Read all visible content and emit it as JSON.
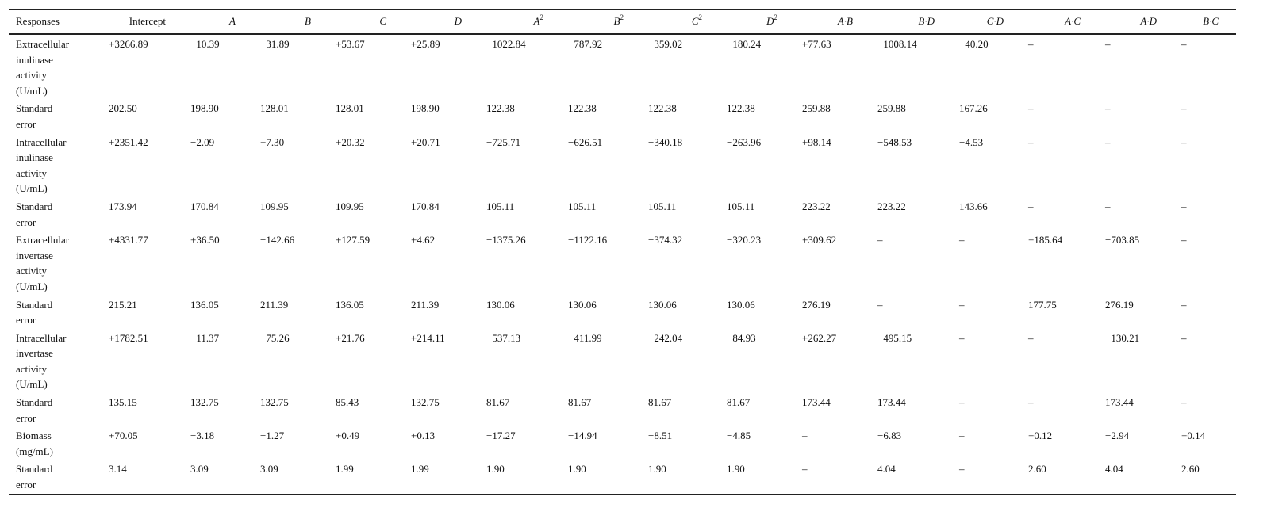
{
  "table": {
    "headers": [
      {
        "base": "Responses",
        "sup": "",
        "italic": false
      },
      {
        "base": "Intercept",
        "sup": "",
        "italic": false
      },
      {
        "base": "A",
        "sup": "",
        "italic": true
      },
      {
        "base": "B",
        "sup": "",
        "italic": true
      },
      {
        "base": "C",
        "sup": "",
        "italic": true
      },
      {
        "base": "D",
        "sup": "",
        "italic": true
      },
      {
        "base": "A",
        "sup": "2",
        "italic": true
      },
      {
        "base": "B",
        "sup": "2",
        "italic": true
      },
      {
        "base": "C",
        "sup": "2",
        "italic": true
      },
      {
        "base": "D",
        "sup": "2",
        "italic": true
      },
      {
        "base": "A·B",
        "sup": "",
        "italic": true
      },
      {
        "base": "B·D",
        "sup": "",
        "italic": true
      },
      {
        "base": "C·D",
        "sup": "",
        "italic": true
      },
      {
        "base": "A·C",
        "sup": "",
        "italic": true
      },
      {
        "base": "A·D",
        "sup": "",
        "italic": true
      },
      {
        "base": "B·C",
        "sup": "",
        "italic": true
      }
    ],
    "rows": [
      [
        "Extracellular inulinase activity (U/mL)",
        "+3266.89",
        "−10.39",
        "−31.89",
        "+53.67",
        "+25.89",
        "−1022.84",
        "−787.92",
        "−359.02",
        "−180.24",
        "+77.63",
        "−1008.14",
        "−40.20",
        "–",
        "–",
        "–"
      ],
      [
        "Standard error",
        "202.50",
        "198.90",
        "128.01",
        "128.01",
        "198.90",
        "122.38",
        "122.38",
        "122.38",
        "122.38",
        "259.88",
        "259.88",
        "167.26",
        "–",
        "–",
        "–"
      ],
      [
        "Intracellular inulinase activity (U/mL)",
        "+2351.42",
        "−2.09",
        "+7.30",
        "+20.32",
        "+20.71",
        "−725.71",
        "−626.51",
        "−340.18",
        "−263.96",
        "+98.14",
        "−548.53",
        "−4.53",
        "–",
        "–",
        "–"
      ],
      [
        "Standard error",
        "173.94",
        "170.84",
        "109.95",
        "109.95",
        "170.84",
        "105.11",
        "105.11",
        "105.11",
        "105.11",
        "223.22",
        "223.22",
        "143.66",
        "–",
        "–",
        "–"
      ],
      [
        "Extracellular invertase activity (U/mL)",
        "+4331.77",
        "+36.50",
        "−142.66",
        "+127.59",
        "+4.62",
        "−1375.26",
        "−1122.16",
        "−374.32",
        "−320.23",
        "+309.62",
        "–",
        "–",
        "+185.64",
        "−703.85",
        "–"
      ],
      [
        "Standard error",
        "215.21",
        "136.05",
        "211.39",
        "136.05",
        "211.39",
        "130.06",
        "130.06",
        "130.06",
        "130.06",
        "276.19",
        "–",
        "–",
        "177.75",
        "276.19",
        "–"
      ],
      [
        "Intracellular invertase activity (U/mL)",
        "+1782.51",
        "−11.37",
        "−75.26",
        "+21.76",
        "+214.11",
        "−537.13",
        "−411.99",
        "−242.04",
        "−84.93",
        "+262.27",
        "−495.15",
        "–",
        "–",
        "−130.21",
        "–"
      ],
      [
        "Standard error",
        "135.15",
        "132.75",
        "132.75",
        "85.43",
        "132.75",
        "81.67",
        "81.67",
        "81.67",
        "81.67",
        "173.44",
        "173.44",
        "–",
        "–",
        "173.44",
        "–"
      ],
      [
        "Biomass (mg/mL)",
        "+70.05",
        "−3.18",
        "−1.27",
        "+0.49",
        "+0.13",
        "−17.27",
        "−14.94",
        "−8.51",
        "−4.85",
        "–",
        "−6.83",
        "–",
        "+0.12",
        "−2.94",
        "+0.14"
      ],
      [
        "Standard error",
        "3.14",
        "3.09",
        "3.09",
        "1.99",
        "1.99",
        "1.90",
        "1.90",
        "1.90",
        "1.90",
        "–",
        "4.04",
        "–",
        "2.60",
        "4.04",
        "2.60"
      ]
    ]
  }
}
